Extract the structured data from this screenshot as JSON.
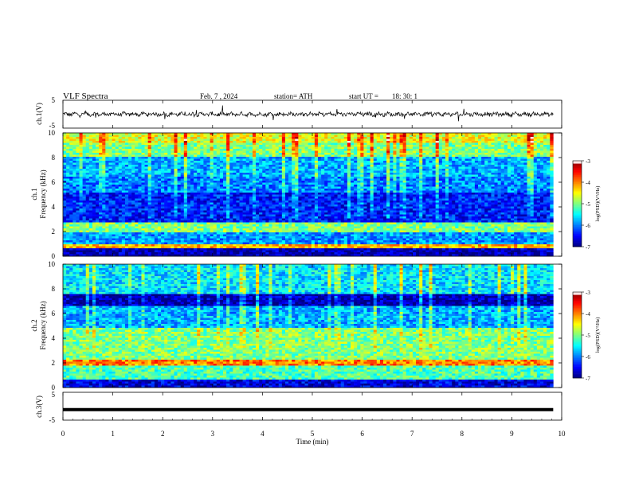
{
  "header": {
    "title": "VLF  Spectra",
    "date": "Feb. 7  , 2024",
    "station": "station= ATH",
    "start_label": "start  UT  =",
    "start_time": "18: 30: 1"
  },
  "chart_data": [
    {
      "type": "line",
      "name": "ch1-waveform",
      "ylabel": "ch.1(V)",
      "ylim": [
        -5,
        5
      ],
      "yticks": [
        "5",
        "-5"
      ],
      "xlim": [
        0,
        10
      ],
      "baseline": 0,
      "data_end_min": 9.83
    },
    {
      "type": "heatmap",
      "name": "ch1-spectrogram",
      "ylabel": "ch.1\nFrequency (kHz)",
      "ylabel_line1": "ch.1",
      "ylabel_line2": "Frequency (kHz)",
      "ylim": [
        0,
        10
      ],
      "yticks": [
        "0",
        "2",
        "4",
        "6",
        "8",
        "10"
      ],
      "xlim": [
        0,
        10
      ],
      "data_end_min": 9.83,
      "colorbar": {
        "label": "log(PSD)(V²/Hz)",
        "range": [
          -7,
          -3
        ],
        "ticks": [
          "-3",
          "-4",
          "-5",
          "-6",
          "-7"
        ]
      },
      "bands": [
        {
          "f_low": 0.0,
          "f_high": 0.6,
          "level": -6.8
        },
        {
          "f_low": 0.6,
          "f_high": 1.0,
          "level": -4.2
        },
        {
          "f_low": 1.0,
          "f_high": 1.9,
          "level": -5.9
        },
        {
          "f_low": 1.9,
          "f_high": 2.8,
          "level": -5.0
        },
        {
          "f_low": 2.8,
          "f_high": 5.2,
          "level": -6.4
        },
        {
          "f_low": 5.2,
          "f_high": 6.5,
          "level": -6.0
        },
        {
          "f_low": 6.5,
          "f_high": 8.0,
          "level": -5.8
        },
        {
          "f_low": 8.0,
          "f_high": 9.2,
          "level": -5.0
        },
        {
          "f_low": 9.2,
          "f_high": 10.0,
          "level": -4.6
        }
      ]
    },
    {
      "type": "heatmap",
      "name": "ch2-spectrogram",
      "ylabel_line1": "ch.2",
      "ylabel_line2": "Frequency (kHz)",
      "ylim": [
        0,
        10
      ],
      "yticks": [
        "0",
        "2",
        "4",
        "6",
        "8",
        "10"
      ],
      "xlim": [
        0,
        10
      ],
      "data_end_min": 9.83,
      "colorbar": {
        "label": "log(PSD)(V²/Hz)",
        "range": [
          -7,
          -3
        ],
        "ticks": [
          "-3",
          "-4",
          "-5",
          "-6",
          "-7"
        ]
      },
      "bands": [
        {
          "f_low": 0.0,
          "f_high": 0.6,
          "level": -6.6
        },
        {
          "f_low": 0.6,
          "f_high": 1.7,
          "level": -5.2
        },
        {
          "f_low": 1.7,
          "f_high": 2.3,
          "level": -4.0
        },
        {
          "f_low": 2.3,
          "f_high": 4.8,
          "level": -5.0
        },
        {
          "f_low": 4.8,
          "f_high": 6.6,
          "level": -5.8
        },
        {
          "f_low": 6.6,
          "f_high": 7.6,
          "level": -6.8
        },
        {
          "f_low": 7.6,
          "f_high": 10.0,
          "level": -5.6
        }
      ]
    },
    {
      "type": "line",
      "name": "ch3-waveform",
      "ylabel": "ch.3(V)",
      "ylim": [
        -5,
        5
      ],
      "yticks": [
        "5",
        "-5"
      ],
      "xlim": [
        0,
        10
      ],
      "baseline": -1.2,
      "data_end_min": 9.83
    }
  ],
  "xaxis": {
    "label": "Time  (min)",
    "ticks": [
      "0",
      "1",
      "2",
      "3",
      "4",
      "5",
      "6",
      "7",
      "8",
      "9",
      "10"
    ]
  },
  "colors": {
    "frame": "#000000",
    "trace": "#000000"
  }
}
